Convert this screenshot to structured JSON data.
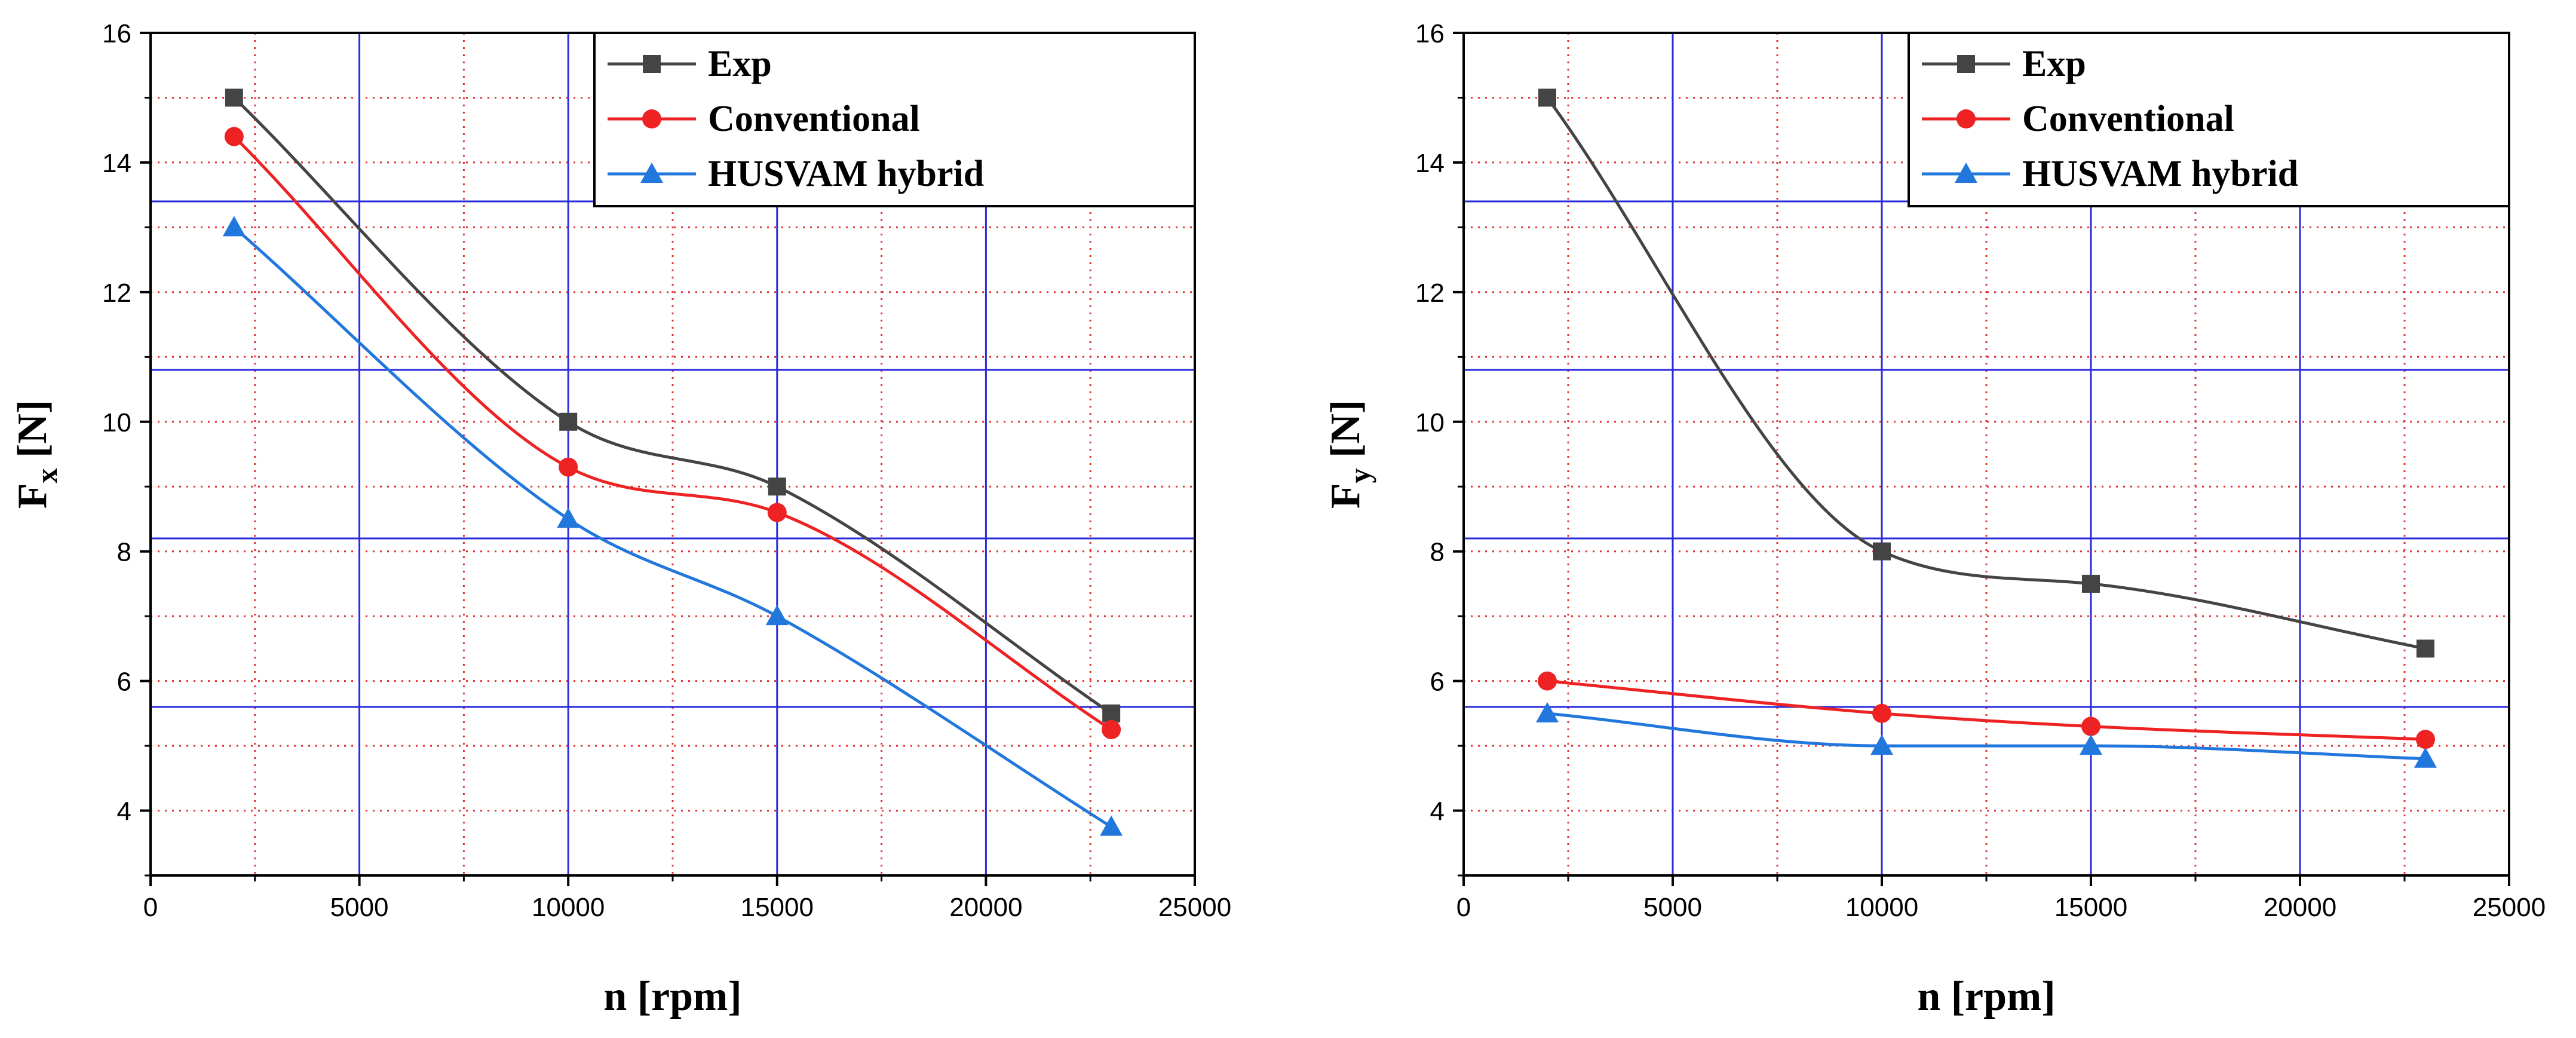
{
  "chart_data": [
    {
      "type": "line",
      "title": "",
      "xlabel": "n [rpm]",
      "ylabel_main": "F",
      "ylabel_sub": "x",
      "ylabel_unit": "[N]",
      "xlim": [
        0,
        25000
      ],
      "ylim": [
        3,
        16
      ],
      "xticks": [
        0,
        5000,
        10000,
        15000,
        20000,
        25000
      ],
      "yticks": [
        4,
        6,
        8,
        10,
        12,
        14,
        16
      ],
      "legend_position": "top-right",
      "x": [
        2000,
        10000,
        15000,
        23000
      ],
      "series": [
        {
          "name": "Exp",
          "values": [
            15.0,
            10.0,
            9.0,
            5.5
          ],
          "color": "#444444",
          "marker": "square"
        },
        {
          "name": "Conventional",
          "values": [
            14.4,
            9.3,
            8.6,
            5.25
          ],
          "color": "#ee2222",
          "marker": "circle"
        },
        {
          "name": "HUSVAM hybrid",
          "values": [
            13.0,
            8.5,
            7.0,
            3.75
          ],
          "color": "#2277dd",
          "marker": "triangle"
        }
      ]
    },
    {
      "type": "line",
      "title": "",
      "xlabel": "n [rpm]",
      "ylabel_main": "F",
      "ylabel_sub": "y",
      "ylabel_unit": "[N]",
      "xlim": [
        0,
        25000
      ],
      "ylim": [
        3,
        16
      ],
      "xticks": [
        0,
        5000,
        10000,
        15000,
        20000,
        25000
      ],
      "yticks": [
        4,
        6,
        8,
        10,
        12,
        14,
        16
      ],
      "legend_position": "top-right",
      "x": [
        2000,
        10000,
        15000,
        23000
      ],
      "series": [
        {
          "name": "Exp",
          "values": [
            15.0,
            8.0,
            7.5,
            6.5
          ],
          "color": "#444444",
          "marker": "square"
        },
        {
          "name": "Conventional",
          "values": [
            6.0,
            5.5,
            5.3,
            5.1
          ],
          "color": "#ee2222",
          "marker": "circle"
        },
        {
          "name": "HUSVAM hybrid",
          "values": [
            5.5,
            5.0,
            5.0,
            4.8
          ],
          "color": "#2277dd",
          "marker": "triangle"
        }
      ]
    }
  ]
}
